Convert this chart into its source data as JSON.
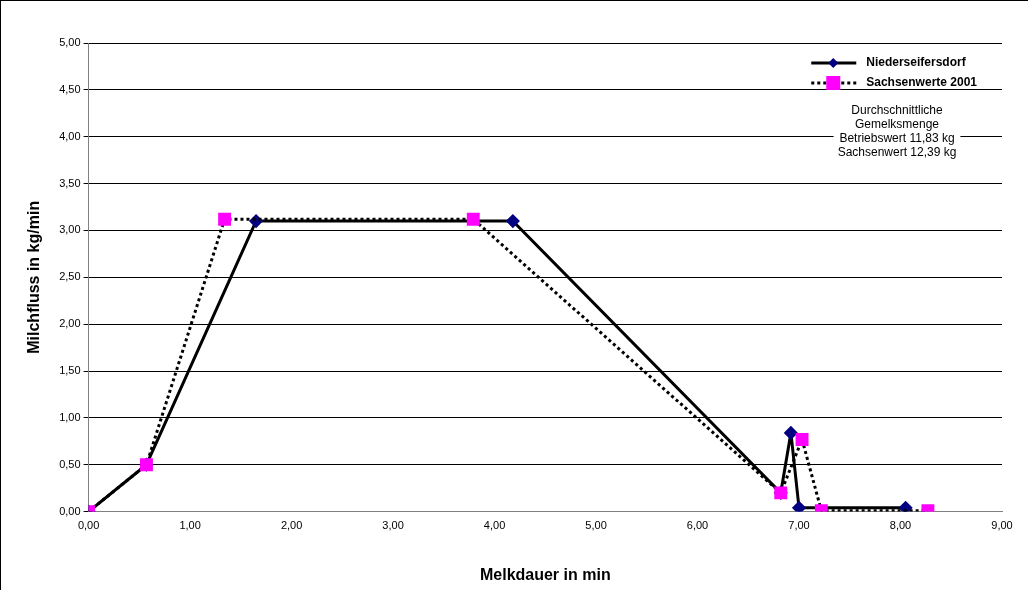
{
  "chart_data": {
    "type": "line",
    "xlabel": "Melkdauer in min",
    "ylabel": "Milchfluss in kg/min",
    "xlim": [
      0,
      9
    ],
    "xticks": [
      {
        "value": 0,
        "label": "0,00"
      },
      {
        "value": 1,
        "label": "1,00"
      },
      {
        "value": 2,
        "label": "2,00"
      },
      {
        "value": 3,
        "label": "3,00"
      },
      {
        "value": 4,
        "label": "4,00"
      },
      {
        "value": 5,
        "label": "5,00"
      },
      {
        "value": 6,
        "label": "6,00"
      },
      {
        "value": 7,
        "label": "7,00"
      },
      {
        "value": 8,
        "label": "8,00"
      },
      {
        "value": 9,
        "label": "9,00"
      }
    ],
    "ylim": [
      0,
      5
    ],
    "yticks": [
      {
        "value": 0,
        "label": "0,00"
      },
      {
        "value": 0.5,
        "label": "0,50"
      },
      {
        "value": 1,
        "label": "1,00"
      },
      {
        "value": 1.5,
        "label": "1,50"
      },
      {
        "value": 2,
        "label": "2,00"
      },
      {
        "value": 2.5,
        "label": "2,50"
      },
      {
        "value": 3,
        "label": "3,00"
      },
      {
        "value": 3.5,
        "label": "3,50"
      },
      {
        "value": 4,
        "label": "4,00"
      },
      {
        "value": 4.5,
        "label": "4,50"
      },
      {
        "value": 5,
        "label": "5,00"
      }
    ],
    "grid": "y",
    "legend": "top right",
    "series": [
      {
        "name": "Niederseifersdorf",
        "color": "#000080",
        "marker": "diamond",
        "line_style": "solid",
        "x": [
          0,
          0.57,
          1.65,
          4.18,
          6.82,
          6.92,
          7.0,
          8.05
        ],
        "values": [
          0,
          0.5,
          3.1,
          3.1,
          0.2,
          0.84,
          0.04,
          0.04
        ]
      },
      {
        "name": "Sachsenwerte 2001",
        "color": "#ff00ff",
        "marker": "square",
        "line_style": "dotted",
        "x": [
          0,
          0.57,
          1.34,
          3.79,
          6.82,
          7.03,
          7.22,
          8.27
        ],
        "values": [
          0,
          0.5,
          3.12,
          3.12,
          0.2,
          0.77,
          0.01,
          0.01
        ]
      }
    ],
    "annotations": [
      "Durchschnittliche\nGemelksmenge\nBetriebswert 11,83 kg\nSachsenwert 12,39 kg"
    ]
  }
}
